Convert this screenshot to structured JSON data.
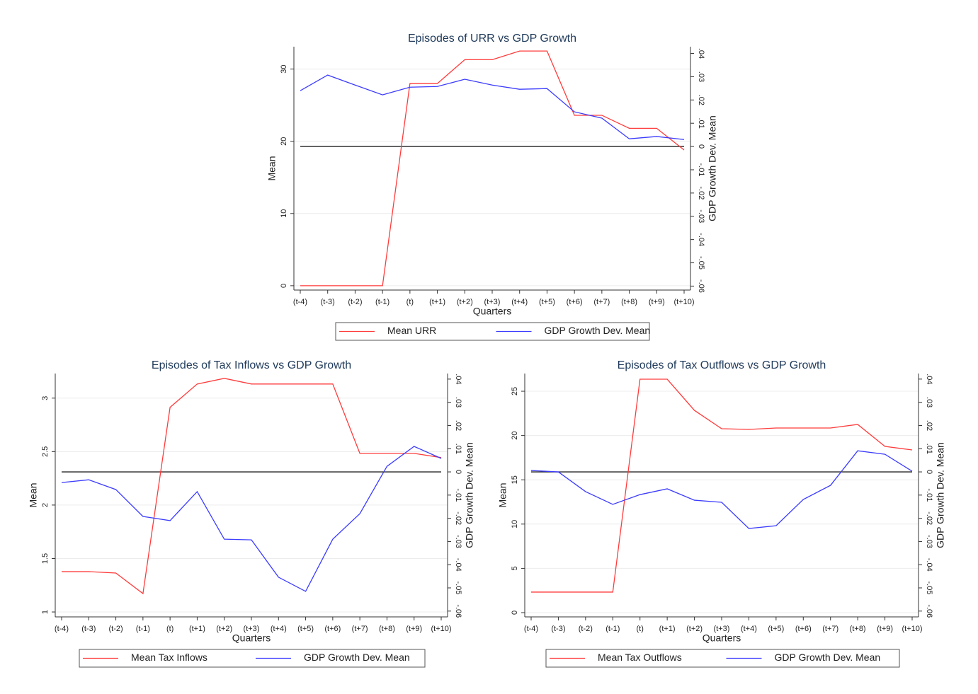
{
  "chart_data": [
    {
      "type": "line",
      "title": "Episodes of URR vs GDP Growth",
      "xlabel": "Quarters",
      "ylabel": "Mean",
      "y2label": "GDP Growth Dev. Mean",
      "categories": [
        "(t-4)",
        "(t-3)",
        "(t-2)",
        "(t-1)",
        "(t)",
        "(t+1)",
        "(t+2)",
        "(t+3)",
        "(t+4)",
        "(t+5)",
        "(t+6)",
        "(t+7)",
        "(t+8)",
        "(t+9)",
        "(t+10)"
      ],
      "series": [
        {
          "name": "Mean URR",
          "color": "#ff3b3b",
          "values": [
            0,
            0,
            0,
            0,
            28.0,
            28.0,
            31.3,
            31.3,
            32.5,
            32.5,
            23.6,
            23.6,
            21.8,
            21.8,
            18.8
          ]
        },
        {
          "name": "GDP Growth Dev. Mean",
          "color": "#3b3bff",
          "axis": "y2",
          "values": [
            0.024,
            0.0307,
            0.0264,
            0.0222,
            0.0255,
            0.0258,
            0.0289,
            0.0264,
            0.0246,
            0.0249,
            0.0149,
            0.0122,
            0.0033,
            0.0043,
            0.003
          ]
        }
      ],
      "ylim": [
        -0.6,
        33.1
      ],
      "yticks": [
        0,
        10,
        20,
        30
      ],
      "y2lim": [
        -0.0617,
        0.0429
      ],
      "y2ticks": [
        {
          "value": -0.06,
          "label": "-.06"
        },
        {
          "value": -0.05,
          "label": "-.05"
        },
        {
          "value": -0.04,
          "label": "-.04"
        },
        {
          "value": -0.03,
          "label": "-.03"
        },
        {
          "value": -0.02,
          "label": "-.02"
        },
        {
          "value": -0.01,
          "label": "-.01"
        },
        0,
        {
          "value": 0.01,
          "label": ".01"
        },
        {
          "value": 0.02,
          "label": ".02"
        },
        {
          "value": 0.03,
          "label": ".03"
        },
        {
          "value": 0.04,
          "label": ".04"
        }
      ],
      "hline_y2": 0,
      "grid": true
    },
    {
      "type": "line",
      "title": "Episodes of Tax Inflows vs GDP Growth",
      "xlabel": "Quarters",
      "ylabel": "Mean",
      "y2label": "GDP Growth Dev. Mean",
      "categories": [
        "(t-4)",
        "(t-3)",
        "(t-2)",
        "(t-1)",
        "(t)",
        "(t+1)",
        "(t+2)",
        "(t+3)",
        "(t+4)",
        "(t+5)",
        "(t+6)",
        "(t+7)",
        "(t+8)",
        "(t+9)",
        "(t+10)"
      ],
      "series": [
        {
          "name": "Mean Tax Inflows",
          "color": "#ff3b3b",
          "values": [
            1.377,
            1.377,
            1.364,
            1.172,
            2.914,
            3.132,
            3.185,
            3.132,
            3.132,
            3.132,
            3.132,
            2.483,
            2.483,
            2.483,
            2.444
          ]
        },
        {
          "name": "GDP Growth Dev. Mean",
          "color": "#3b3bff",
          "axis": "y2",
          "values": [
            -0.0046,
            -0.0034,
            -0.0076,
            -0.0192,
            -0.021,
            -0.0085,
            -0.029,
            -0.0293,
            -0.0454,
            -0.0515,
            -0.029,
            -0.018,
            0.0024,
            0.011,
            0.0058
          ]
        }
      ],
      "ylim": [
        0.954,
        3.23
      ],
      "yticks": [
        1,
        1.5,
        2,
        2.5,
        3
      ],
      "y2lim": [
        -0.0625,
        0.0424
      ],
      "y2ticks": [
        {
          "value": -0.06,
          "label": "-.06"
        },
        {
          "value": -0.05,
          "label": "-.05"
        },
        {
          "value": -0.04,
          "label": "-.04"
        },
        {
          "value": -0.03,
          "label": "-.03"
        },
        {
          "value": -0.02,
          "label": "-.02"
        },
        {
          "value": -0.01,
          "label": "-.01"
        },
        0,
        {
          "value": 0.01,
          "label": ".01"
        },
        {
          "value": 0.02,
          "label": ".02"
        },
        {
          "value": 0.03,
          "label": ".03"
        },
        {
          "value": 0.04,
          "label": ".04"
        }
      ],
      "hline_y2": 0,
      "grid": true
    },
    {
      "type": "line",
      "title": "Episodes of Tax Outflows vs GDP Growth",
      "xlabel": "Quarters",
      "ylabel": "Mean",
      "y2label": "GDP Growth Dev. Mean",
      "categories": [
        "(t-4)",
        "(t-3)",
        "(t-2)",
        "(t-1)",
        "(t)",
        "(t+1)",
        "(t+2)",
        "(t+3)",
        "(t+4)",
        "(t+5)",
        "(t+6)",
        "(t+7)",
        "(t+8)",
        "(t+9)",
        "(t+10)"
      ],
      "series": [
        {
          "name": "Mean Tax Outflows",
          "color": "#ff3b3b",
          "values": [
            2.32,
            2.32,
            2.32,
            2.32,
            26.36,
            26.36,
            22.84,
            20.77,
            20.69,
            20.85,
            20.85,
            20.85,
            21.25,
            18.77,
            18.37
          ]
        },
        {
          "name": "GDP Growth Dev. Mean",
          "color": "#3b3bff",
          "axis": "y2",
          "values": [
            0.0006,
            0,
            -0.0085,
            -0.014,
            -0.0098,
            -0.0073,
            -0.0122,
            -0.0131,
            -0.0244,
            -0.0232,
            -0.0119,
            -0.0058,
            0.0091,
            0.0076,
            0.0003
          ]
        }
      ],
      "ylim": [
        -0.48,
        27.0
      ],
      "yticks": [
        0,
        5,
        10,
        15,
        20,
        25
      ],
      "y2lim": [
        -0.0625,
        0.0424
      ],
      "y2ticks": [
        {
          "value": -0.06,
          "label": "-.06"
        },
        {
          "value": -0.05,
          "label": "-.05"
        },
        {
          "value": -0.04,
          "label": "-.04"
        },
        {
          "value": -0.03,
          "label": "-.03"
        },
        {
          "value": -0.02,
          "label": "-.02"
        },
        {
          "value": -0.01,
          "label": "-.01"
        },
        0,
        {
          "value": 0.01,
          "label": ".01"
        },
        {
          "value": 0.02,
          "label": ".02"
        },
        {
          "value": 0.03,
          "label": ".03"
        },
        {
          "value": 0.04,
          "label": ".04"
        }
      ],
      "hline_y2": 0,
      "grid": true
    }
  ]
}
